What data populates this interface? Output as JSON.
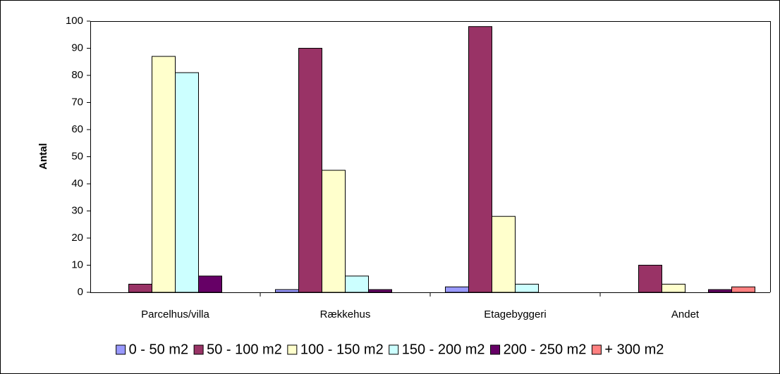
{
  "chart_data": {
    "type": "bar",
    "y_label": "Antal",
    "categories": [
      "Parcelhus/villa",
      "Rækkehus",
      "Etagebyggeri",
      "Andet"
    ],
    "series": [
      {
        "name": "0 - 50 m2",
        "color": "#9999ff",
        "values": [
          0,
          1,
          2,
          0
        ]
      },
      {
        "name": "50 - 100 m2",
        "color": "#993366",
        "values": [
          3,
          90,
          98,
          10
        ]
      },
      {
        "name": "100 - 150 m2",
        "color": "#ffffcc",
        "values": [
          87,
          45,
          28,
          3
        ]
      },
      {
        "name": "150 - 200 m2",
        "color": "#ccffff",
        "values": [
          81,
          6,
          3,
          0
        ]
      },
      {
        "name": "200 - 250 m2",
        "color": "#660066",
        "values": [
          6,
          1,
          0,
          1
        ]
      },
      {
        "name": "+ 300 m2",
        "color": "#ff8080",
        "values": [
          0,
          0,
          0,
          2
        ]
      }
    ],
    "ylim": [
      0,
      100
    ],
    "yticks": [
      0,
      10,
      20,
      30,
      40,
      50,
      60,
      70,
      80,
      90,
      100
    ],
    "grid": false,
    "legend": "bottom"
  }
}
